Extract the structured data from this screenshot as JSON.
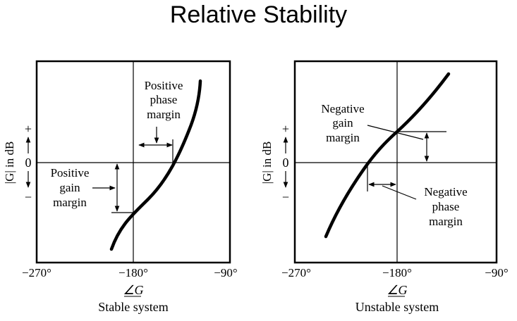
{
  "title": "Relative Stability",
  "left_panel": {
    "caption": "Stable system",
    "ylabel": "|G| in dB",
    "xlabel": "∠G",
    "ticks_x": [
      "−270°",
      "−180°",
      "−90°"
    ],
    "ticks_y": {
      "plus": "+",
      "zero": "0",
      "minus": "−"
    },
    "annotation_phase": [
      "Positive",
      "phase",
      "margin"
    ],
    "annotation_gain": [
      "Positive",
      "gain",
      "margin"
    ]
  },
  "right_panel": {
    "caption": "Unstable system",
    "ylabel": "|G| in dB",
    "xlabel": "∠G",
    "ticks_x": [
      "−270°",
      "−180°",
      "−90°"
    ],
    "ticks_y": {
      "plus": "+",
      "zero": "0",
      "minus": "−"
    },
    "annotation_gain": [
      "Negative",
      "gain",
      "margin"
    ],
    "annotation_phase": [
      "Negative",
      "phase",
      "margin"
    ]
  }
}
